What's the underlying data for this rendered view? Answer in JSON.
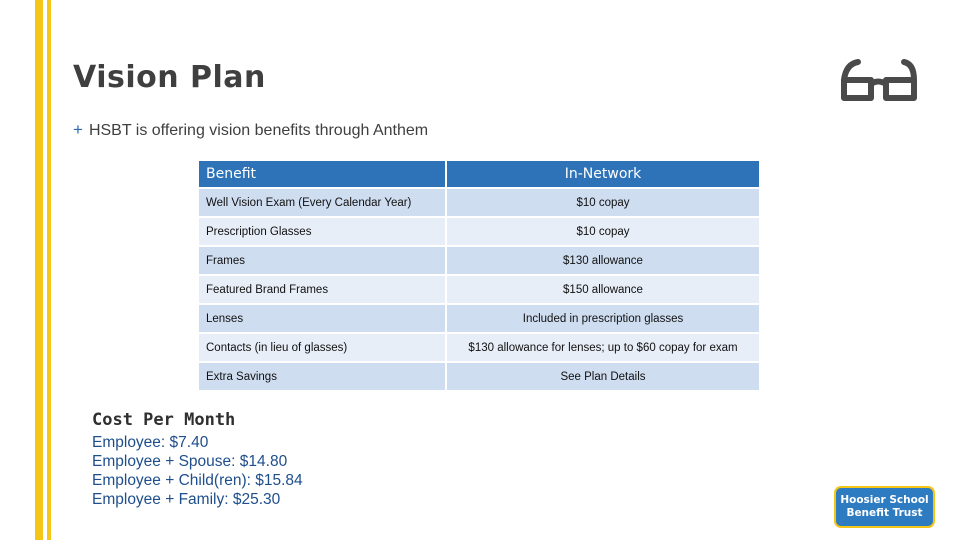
{
  "slide": {
    "title": "Vision Plan",
    "bullet": "HSBT is offering vision benefits through Anthem",
    "bullet_marker": "+"
  },
  "table": {
    "headers": {
      "benefit": "Benefit",
      "network": "In-Network"
    },
    "rows": [
      {
        "benefit": "Well Vision Exam (Every Calendar Year)",
        "network": "$10 copay"
      },
      {
        "benefit": "Prescription Glasses",
        "network": "$10 copay"
      },
      {
        "benefit": "Frames",
        "network": "$130 allowance"
      },
      {
        "benefit": "Featured Brand Frames",
        "network": "$150 allowance"
      },
      {
        "benefit": "Lenses",
        "network": "Included in prescription glasses"
      },
      {
        "benefit": "Contacts (in lieu of glasses)",
        "network": "$130 allowance for lenses; up to $60 copay for exam"
      },
      {
        "benefit": "Extra Savings",
        "network": "See Plan Details"
      }
    ]
  },
  "cost": {
    "title": "Cost Per Month",
    "lines": [
      {
        "label": "Employee:",
        "value": "$7.40"
      },
      {
        "label": "Employee + Spouse:",
        "value": "$14.80"
      },
      {
        "label": "Employee + Child(ren):",
        "value": "$15.84"
      },
      {
        "label": "Employee + Family:",
        "value": "$25.30"
      }
    ]
  },
  "logo": {
    "line1": "Hoosier School",
    "line2": "Benefit Trust"
  },
  "icons": {
    "decoration": "glasses-icon"
  },
  "colors": {
    "accent_stripe": "#f5c518",
    "header_blue": "#2e73b8",
    "row_light": "#e8eef8",
    "row_dark": "#cfddf0",
    "cost_text": "#1f4e8c"
  }
}
